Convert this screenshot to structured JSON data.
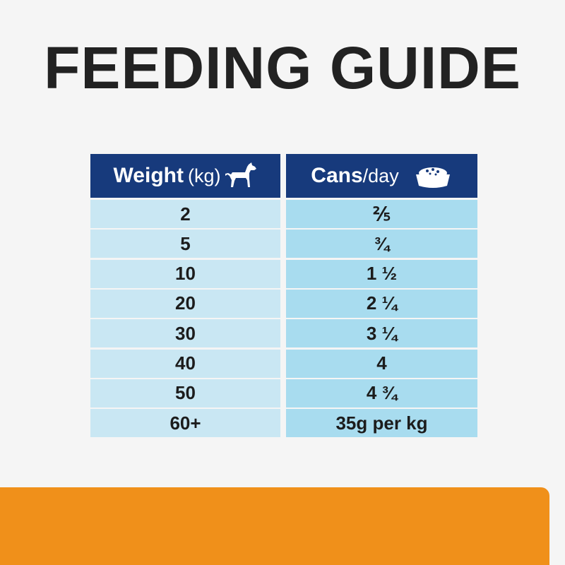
{
  "header": {
    "title": "FEEDING GUIDE"
  },
  "table": {
    "columns": [
      {
        "bold": "Weight",
        "light": "(kg)"
      },
      {
        "bold": "Cans",
        "light": "/day"
      }
    ],
    "rows": [
      [
        "2",
        "⅖"
      ],
      [
        "5",
        "¾"
      ],
      [
        "10",
        "1 ½"
      ],
      [
        "20",
        "2 ¼"
      ],
      [
        "30",
        "3 ¼"
      ],
      [
        "40",
        "4"
      ],
      [
        "50",
        "4 ¾"
      ],
      [
        "60+",
        "35g per kg"
      ]
    ]
  }
}
